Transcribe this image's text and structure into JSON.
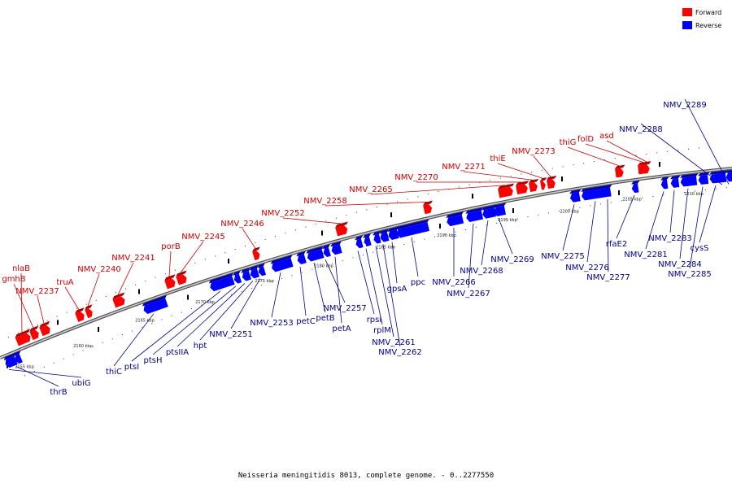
{
  "legend": {
    "forward_label": "Forward",
    "reverse_label": "Reverse",
    "forward_color": "#ff0000",
    "reverse_color": "#0000ff"
  },
  "caption": "Neisseria meningitidis 8013, complete genome. - 0..2277550",
  "tick_labels": [
    "2155 kbp",
    "2160 kbp",
    "2165 kbp",
    "2170 kbp",
    "2175 kbp",
    "2180 kbp",
    "2185 kbp",
    "2190 kbp",
    "2195 kbp",
    "2200 kbp",
    "2205 kbp",
    "2210 kbp"
  ],
  "forward_genes": [
    "nlaB",
    "gmhB",
    "NMV_2237",
    "truA",
    "NMV_2240",
    "NMV_2241",
    "porB",
    "NMV_2245",
    "NMV_2246",
    "NMV_2252",
    "NMV_2258",
    "NMV_2265",
    "NMV_2270",
    "NMV_2271",
    "thiE",
    "NMV_2273",
    "thiG",
    "folD",
    "asd"
  ],
  "reverse_genes": [
    "thrB",
    "ubiG",
    "thiC",
    "ptsI",
    "ptsH",
    "ptsIIA",
    "hpt",
    "NMV_2251",
    "NMV_2253",
    "petC",
    "petB",
    "NMV_2257",
    "petA",
    "rpsI",
    "rplM",
    "NMV_2261",
    "NMV_2262",
    "gpsA",
    "ppc",
    "NMV_2266",
    "NMV_2267",
    "NMV_2268",
    "NMV_2269",
    "NMV_2275",
    "NMV_2276",
    "NMV_2277",
    "rfaE2",
    "NMV_2281",
    "NMV_2283",
    "NMV_2284",
    "NMV_2285",
    "cysS",
    "NMV_2288",
    "NMV_2289"
  ]
}
